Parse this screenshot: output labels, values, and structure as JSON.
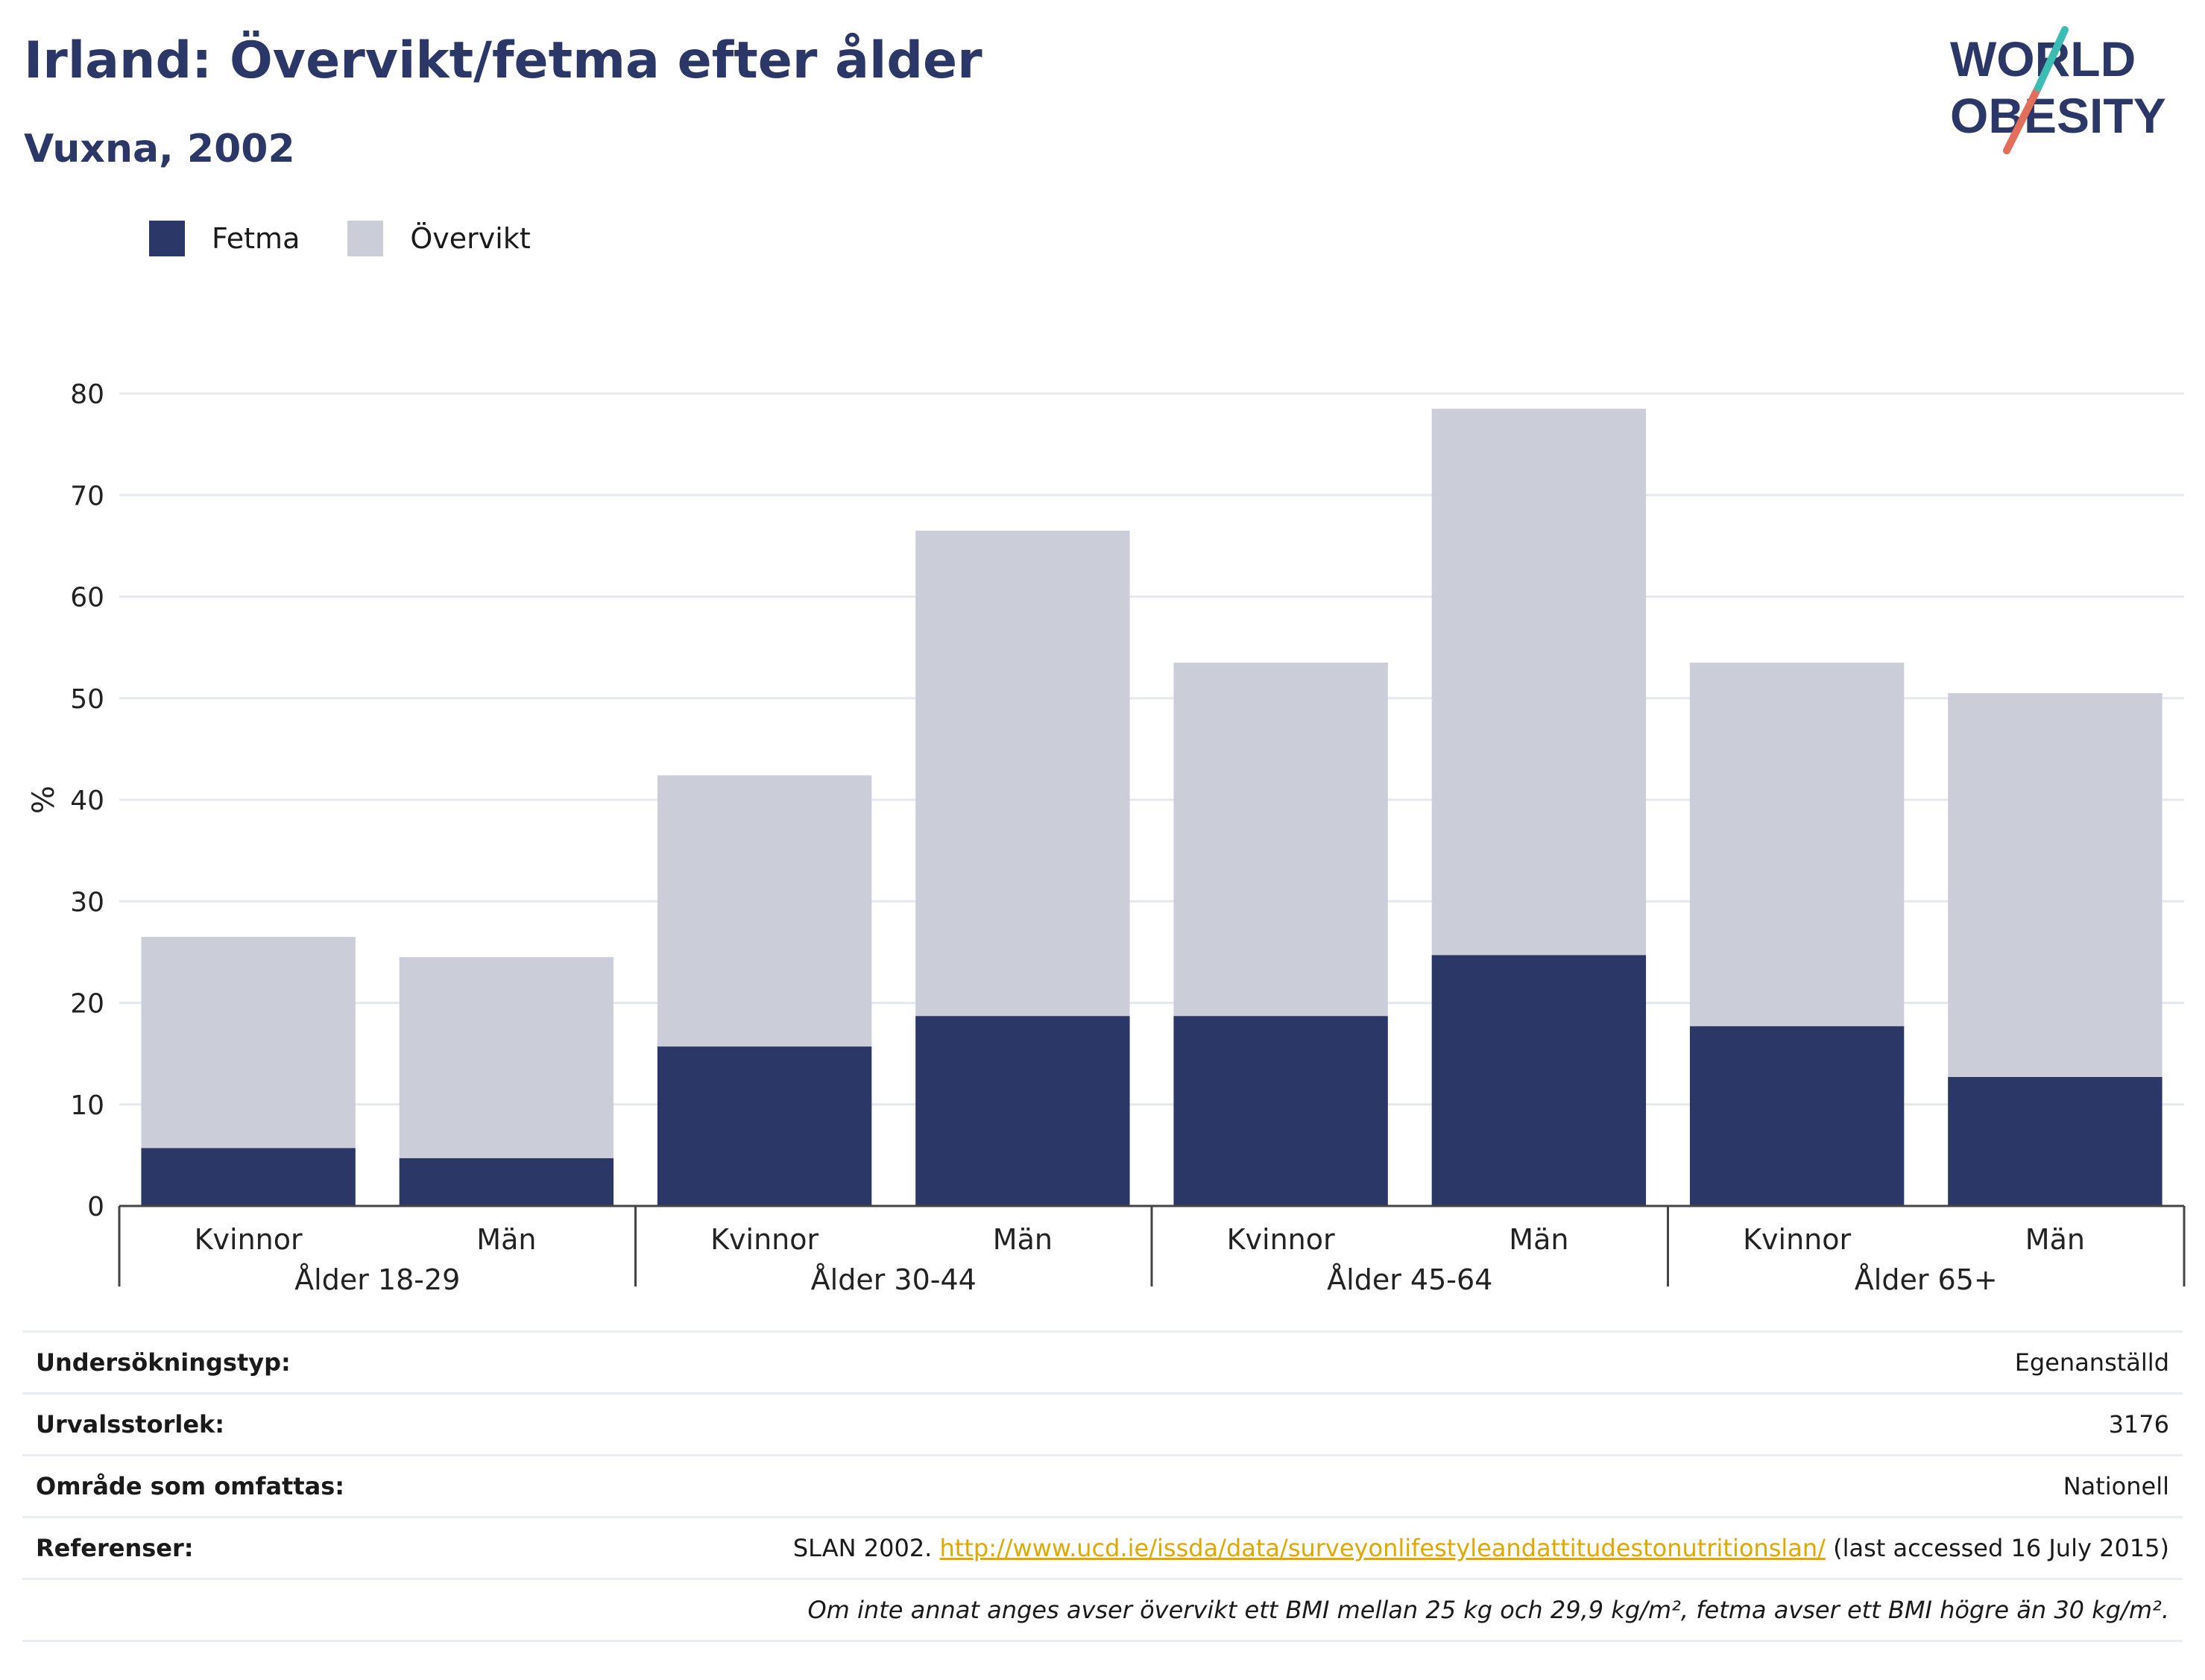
{
  "header": {
    "title": "Irland: Övervikt/fetma efter ålder",
    "subtitle": "Vuxna, 2002"
  },
  "logo": {
    "line1": "WORLD",
    "line2": "OBESITY",
    "color": "#2b3766",
    "accent1": "#e36f5a",
    "accent2": "#3bbdb4"
  },
  "colors": {
    "fetma": "#2b3766",
    "overvikt": "#cbcdd9",
    "grid": "#e6e8f0",
    "axis": "#444444"
  },
  "chart_data": {
    "type": "bar",
    "stacked": true,
    "groups": [
      "Ålder 18-29",
      "Ålder 30-44",
      "Ålder 45-64",
      "Ålder 65+"
    ],
    "categories": [
      "Kvinnor",
      "Män",
      "Kvinnor",
      "Män",
      "Kvinnor",
      "Män",
      "Kvinnor",
      "Män"
    ],
    "series": [
      {
        "name": "Fetma",
        "values": [
          5.7,
          4.7,
          15.7,
          18.7,
          18.7,
          24.7,
          17.7,
          12.7
        ]
      },
      {
        "name": "Övervikt",
        "values": [
          20.8,
          19.8,
          26.7,
          47.8,
          34.8,
          53.8,
          35.8,
          37.8
        ]
      }
    ],
    "totals": [
      26.5,
      24.5,
      42.4,
      66.5,
      53.5,
      78.5,
      53.5,
      50.5
    ],
    "ylabel": "%",
    "ylim": [
      0,
      80
    ],
    "yticks": [
      "0",
      "10",
      "20",
      "30",
      "40",
      "50",
      "60",
      "70",
      "80"
    ],
    "grid": true,
    "legend": "top-left"
  },
  "info": {
    "rows": [
      {
        "key": "Undersökningstyp:",
        "value": "Egenanställd"
      },
      {
        "key": "Urvalsstorlek:",
        "value": "3176"
      },
      {
        "key": "Område som omfattas:",
        "value": "Nationell"
      }
    ],
    "reference": {
      "key": "Referenser:",
      "prefix": "SLAN 2002. ",
      "link": "http://www.ucd.ie/issda/data/surveyonlifestyleandattitudestonutritionslan/",
      "suffix": " (last accessed 16 July 2015)"
    },
    "note": "Om inte annat anges avser övervikt ett BMI mellan 25 kg och 29,9 kg/m², fetma avser ett BMI högre än 30 kg/m²."
  }
}
